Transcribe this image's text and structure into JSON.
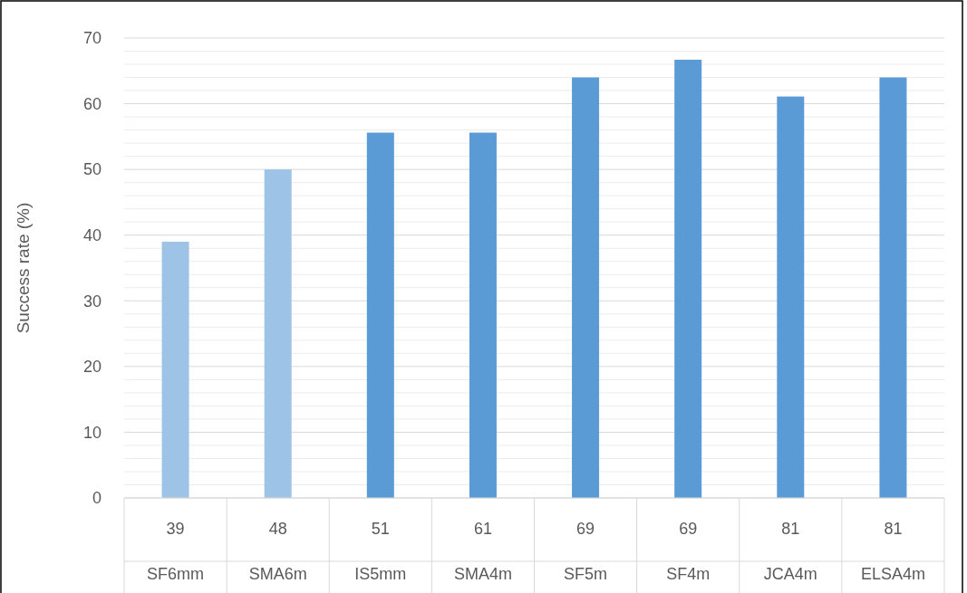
{
  "chart_data": {
    "type": "bar",
    "ylabel": "Success rate (%)",
    "categories": [
      "39\nSF6mm",
      "48\nSMA6m",
      "51\nIS5mm",
      "61\nSMA4m",
      "69\nSF5m",
      "69\nSF4m",
      "81\nJCA4m",
      "81\nELSA4m"
    ],
    "values": [
      39,
      50,
      55.6,
      55.6,
      64,
      66.7,
      61.1,
      64
    ],
    "colors": [
      "#9dc3e6",
      "#9dc3e6",
      "#5b9bd5",
      "#5b9bd5",
      "#5b9bd5",
      "#5b9bd5",
      "#5b9bd5",
      "#5b9bd5"
    ],
    "ylim": [
      0,
      70
    ],
    "yticks": [
      0,
      {
        "value": 2,
        "label": null
      },
      {
        "value": 4,
        "label": null
      },
      {
        "value": 6,
        "label": null
      },
      {
        "value": 8,
        "label": null
      },
      10,
      {
        "value": 12,
        "label": null
      },
      {
        "value": 14,
        "label": null
      },
      {
        "value": 16,
        "label": null
      },
      {
        "value": 18,
        "label": null
      },
      20,
      {
        "value": 22,
        "label": null
      },
      {
        "value": 24,
        "label": null
      },
      {
        "value": 26,
        "label": null
      },
      {
        "value": 28,
        "label": null
      },
      30,
      {
        "value": 32,
        "label": null
      },
      {
        "value": 34,
        "label": null
      },
      {
        "value": 36,
        "label": null
      },
      {
        "value": 38,
        "label": null
      },
      40,
      {
        "value": 42,
        "label": null
      },
      {
        "value": 44,
        "label": null
      },
      {
        "value": 46,
        "label": null
      },
      {
        "value": 48,
        "label": null
      },
      50,
      {
        "value": 52,
        "label": null
      },
      {
        "value": 54,
        "label": null
      },
      {
        "value": 56,
        "label": null
      },
      {
        "value": 58,
        "label": null
      },
      60,
      {
        "value": 62,
        "label": null
      },
      {
        "value": 64,
        "label": null
      },
      {
        "value": 66,
        "label": null
      },
      {
        "value": 68,
        "label": null
      },
      70
    ],
    "grid": true
  }
}
